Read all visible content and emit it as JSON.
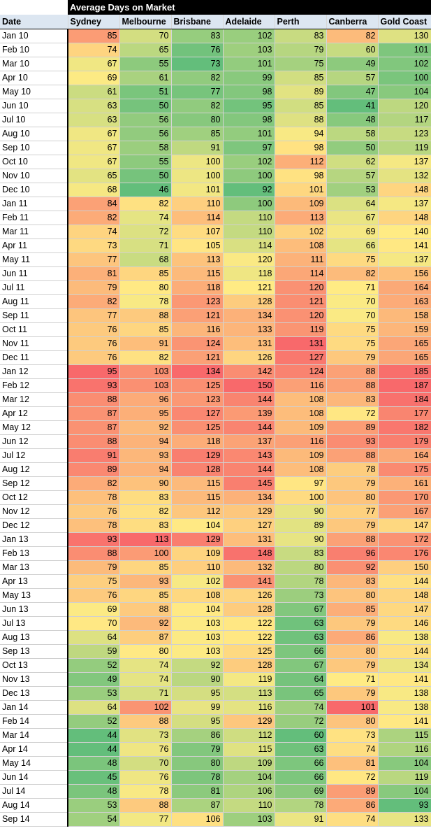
{
  "title": "Average Days on Market",
  "date_header": "Date",
  "cities": [
    "Sydney",
    "Melbourne",
    "Brisbane",
    "Adelaide",
    "Perth",
    "Canberra",
    "Gold Coast"
  ],
  "color_scale": {
    "low": "#63be7b",
    "mid": "#ffeb84",
    "high": "#f8696b"
  },
  "rows": [
    {
      "date": "Jan 10",
      "values": [
        85,
        70,
        83,
        102,
        83,
        82,
        130
      ]
    },
    {
      "date": "Feb 10",
      "values": [
        74,
        65,
        76,
        103,
        79,
        60,
        101
      ]
    },
    {
      "date": "Mar 10",
      "values": [
        67,
        55,
        73,
        101,
        75,
        49,
        102
      ]
    },
    {
      "date": "Apr 10",
      "values": [
        69,
        61,
        82,
        99,
        85,
        57,
        100
      ]
    },
    {
      "date": "May 10",
      "values": [
        61,
        51,
        77,
        98,
        89,
        47,
        104
      ]
    },
    {
      "date": "Jun 10",
      "values": [
        63,
        50,
        82,
        95,
        85,
        41,
        120
      ]
    },
    {
      "date": "Jul 10",
      "values": [
        63,
        56,
        80,
        98,
        88,
        48,
        117
      ]
    },
    {
      "date": "Aug 10",
      "values": [
        67,
        56,
        85,
        101,
        94,
        58,
        123
      ]
    },
    {
      "date": "Sep 10",
      "values": [
        67,
        58,
        91,
        97,
        98,
        50,
        119
      ]
    },
    {
      "date": "Oct 10",
      "values": [
        67,
        55,
        100,
        102,
        112,
        62,
        137
      ]
    },
    {
      "date": "Nov 10",
      "values": [
        65,
        50,
        100,
        100,
        98,
        57,
        132
      ]
    },
    {
      "date": "Dec 10",
      "values": [
        68,
        46,
        101,
        92,
        101,
        53,
        148
      ]
    },
    {
      "date": "Jan 11",
      "values": [
        84,
        82,
        110,
        100,
        109,
        64,
        137
      ]
    },
    {
      "date": "Feb 11",
      "values": [
        82,
        74,
        114,
        110,
        113,
        67,
        148
      ]
    },
    {
      "date": "Mar 11",
      "values": [
        74,
        72,
        107,
        110,
        102,
        69,
        140
      ]
    },
    {
      "date": "Apr 11",
      "values": [
        73,
        71,
        105,
        114,
        108,
        66,
        141
      ]
    },
    {
      "date": "May 11",
      "values": [
        77,
        68,
        113,
        120,
        111,
        75,
        137
      ]
    },
    {
      "date": "Jun 11",
      "values": [
        81,
        85,
        115,
        118,
        114,
        82,
        156
      ]
    },
    {
      "date": "Jul 11",
      "values": [
        79,
        80,
        118,
        121,
        120,
        71,
        164
      ]
    },
    {
      "date": "Aug 11",
      "values": [
        82,
        78,
        123,
        128,
        121,
        70,
        163
      ]
    },
    {
      "date": "Sep 11",
      "values": [
        77,
        88,
        121,
        134,
        120,
        70,
        158
      ]
    },
    {
      "date": "Oct 11",
      "values": [
        76,
        85,
        116,
        133,
        119,
        75,
        159
      ]
    },
    {
      "date": "Nov 11",
      "values": [
        76,
        91,
        124,
        131,
        131,
        75,
        165
      ]
    },
    {
      "date": "Dec 11",
      "values": [
        76,
        82,
        121,
        126,
        127,
        79,
        165
      ]
    },
    {
      "date": "Jan 12",
      "values": [
        95,
        103,
        134,
        142,
        124,
        88,
        185
      ]
    },
    {
      "date": "Feb 12",
      "values": [
        93,
        103,
        125,
        150,
        116,
        88,
        187
      ]
    },
    {
      "date": "Mar 12",
      "values": [
        88,
        96,
        123,
        144,
        108,
        83,
        184
      ]
    },
    {
      "date": "Apr 12",
      "values": [
        87,
        95,
        127,
        139,
        108,
        72,
        177
      ]
    },
    {
      "date": "May 12",
      "values": [
        87,
        92,
        125,
        144,
        109,
        89,
        182
      ]
    },
    {
      "date": "Jun 12",
      "values": [
        88,
        94,
        118,
        137,
        116,
        93,
        179
      ]
    },
    {
      "date": "Jul 12",
      "values": [
        91,
        93,
        129,
        143,
        109,
        88,
        164
      ]
    },
    {
      "date": "Aug 12",
      "values": [
        89,
        94,
        128,
        144,
        108,
        78,
        175
      ]
    },
    {
      "date": "Sep 12",
      "values": [
        82,
        90,
        115,
        145,
        97,
        79,
        161
      ]
    },
    {
      "date": "Oct 12",
      "values": [
        78,
        83,
        115,
        134,
        100,
        80,
        170
      ]
    },
    {
      "date": "Nov 12",
      "values": [
        76,
        82,
        112,
        129,
        90,
        77,
        167
      ]
    },
    {
      "date": "Dec 12",
      "values": [
        78,
        83,
        104,
        127,
        89,
        79,
        147
      ]
    },
    {
      "date": "Jan 13",
      "values": [
        93,
        113,
        129,
        131,
        90,
        88,
        172
      ]
    },
    {
      "date": "Feb 13",
      "values": [
        88,
        100,
        109,
        148,
        83,
        96,
        176
      ]
    },
    {
      "date": "Mar 13",
      "values": [
        79,
        85,
        110,
        132,
        80,
        92,
        150
      ]
    },
    {
      "date": "Apr 13",
      "values": [
        75,
        93,
        102,
        141,
        78,
        83,
        144
      ]
    },
    {
      "date": "May 13",
      "values": [
        76,
        85,
        108,
        126,
        73,
        80,
        148
      ]
    },
    {
      "date": "Jun 13",
      "values": [
        69,
        88,
        104,
        128,
        67,
        85,
        147
      ]
    },
    {
      "date": "Jul 13",
      "values": [
        70,
        92,
        103,
        122,
        63,
        79,
        146
      ]
    },
    {
      "date": "Aug 13",
      "values": [
        64,
        87,
        103,
        122,
        63,
        86,
        138
      ]
    },
    {
      "date": "Sep 13",
      "values": [
        59,
        80,
        103,
        125,
        66,
        80,
        144
      ]
    },
    {
      "date": "Oct 13",
      "values": [
        52,
        74,
        92,
        128,
        67,
        79,
        134
      ]
    },
    {
      "date": "Nov 13",
      "values": [
        49,
        74,
        90,
        119,
        64,
        71,
        141
      ]
    },
    {
      "date": "Dec 13",
      "values": [
        53,
        71,
        95,
        113,
        65,
        79,
        138
      ]
    },
    {
      "date": "Jan 14",
      "values": [
        64,
        102,
        99,
        116,
        74,
        101,
        138
      ]
    },
    {
      "date": "Feb 14",
      "values": [
        52,
        88,
        95,
        129,
        72,
        80,
        141
      ]
    },
    {
      "date": "Mar 14",
      "values": [
        44,
        73,
        86,
        112,
        60,
        73,
        115
      ]
    },
    {
      "date": "Apr 14",
      "values": [
        44,
        76,
        79,
        115,
        63,
        74,
        116
      ]
    },
    {
      "date": "May 14",
      "values": [
        48,
        70,
        80,
        109,
        66,
        81,
        104
      ]
    },
    {
      "date": "Jun 14",
      "values": [
        45,
        76,
        78,
        104,
        66,
        72,
        119
      ]
    },
    {
      "date": "Jul 14",
      "values": [
        48,
        78,
        81,
        106,
        69,
        89,
        104
      ]
    },
    {
      "date": "Aug 14",
      "values": [
        53,
        88,
        87,
        110,
        78,
        86,
        93
      ]
    },
    {
      "date": "Sep 14",
      "values": [
        54,
        77,
        106,
        103,
        91,
        74,
        133
      ]
    }
  ]
}
